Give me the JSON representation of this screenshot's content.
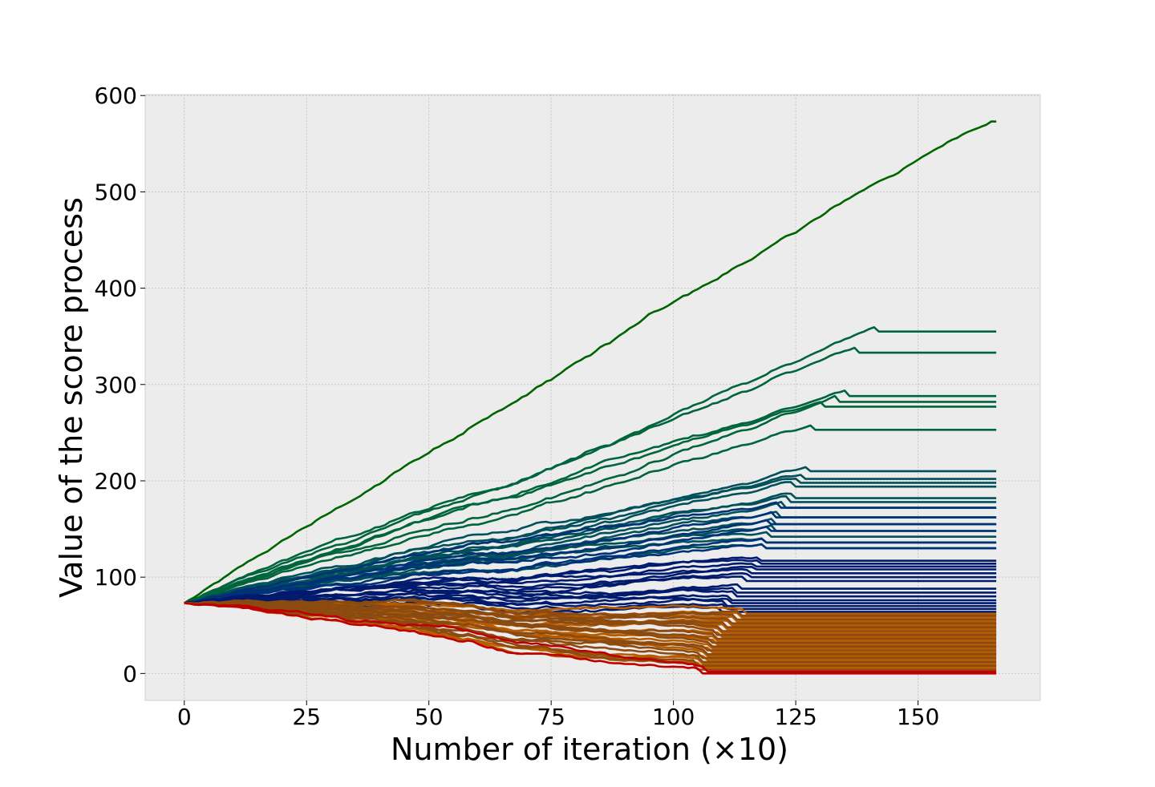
{
  "chart_data": {
    "type": "line",
    "xlabel": "Number of iteration (×10)",
    "ylabel": "Value of the score process",
    "xlim": [
      -8,
      175
    ],
    "ylim": [
      -28,
      601
    ],
    "xticks": [
      0,
      25,
      50,
      75,
      100,
      125,
      150
    ],
    "yticks": [
      0,
      100,
      200,
      300,
      400,
      500,
      600
    ],
    "grid": true,
    "background": "#ececec",
    "start_value": 73,
    "x_end": 166,
    "line_groups": [
      {
        "color": "#006400",
        "finals": [
          573
        ],
        "stop_iters": [
          166
        ]
      },
      {
        "color": "#00643c",
        "finals": [
          355,
          333,
          288,
          282,
          277,
          253
        ],
        "stop_iters": [
          142,
          138,
          136,
          134,
          131,
          129
        ]
      },
      {
        "color": "#01505a",
        "finals": [
          210,
          202,
          198,
          194,
          182,
          178,
          172,
          162,
          155,
          148,
          142,
          136,
          130
        ],
        "stop_iters": [
          128,
          127,
          126,
          125,
          125,
          124,
          123,
          122,
          121,
          121,
          120,
          119,
          119
        ]
      },
      {
        "color": "#003278",
        "finals": [
          172,
          162,
          155,
          148,
          136,
          130
        ],
        "stop_iters": [
          122,
          121,
          120,
          120,
          119,
          119
        ]
      },
      {
        "color": "#001a6e",
        "finals": [
          117,
          114,
          111,
          108,
          104,
          100,
          96,
          88,
          84,
          80,
          76,
          73,
          70,
          67,
          64
        ],
        "stop_iters": [
          118,
          118,
          117,
          117,
          116,
          116,
          115,
          114,
          113,
          113,
          112,
          112,
          111,
          111,
          110
        ]
      },
      {
        "color": "#b85c00",
        "finals": [
          62,
          58,
          54,
          50,
          46,
          42,
          38,
          34,
          30,
          26,
          22,
          18,
          14,
          10,
          6
        ],
        "stop_iters": [
          115,
          114,
          113,
          112,
          111,
          110,
          110,
          109,
          109,
          108,
          108,
          107,
          107,
          106,
          106
        ]
      },
      {
        "color": "#8b4a10",
        "finals": [
          60,
          56,
          52,
          48,
          44,
          40,
          36,
          32,
          28,
          24,
          20,
          16,
          12,
          8,
          4
        ],
        "stop_iters": [
          114,
          113,
          112,
          111,
          110,
          109,
          109,
          108,
          108,
          107,
          107,
          106,
          106,
          105,
          105
        ]
      },
      {
        "color": "#c00000",
        "finals": [
          0,
          2
        ],
        "stop_iters": [
          106,
          107
        ]
      }
    ]
  }
}
